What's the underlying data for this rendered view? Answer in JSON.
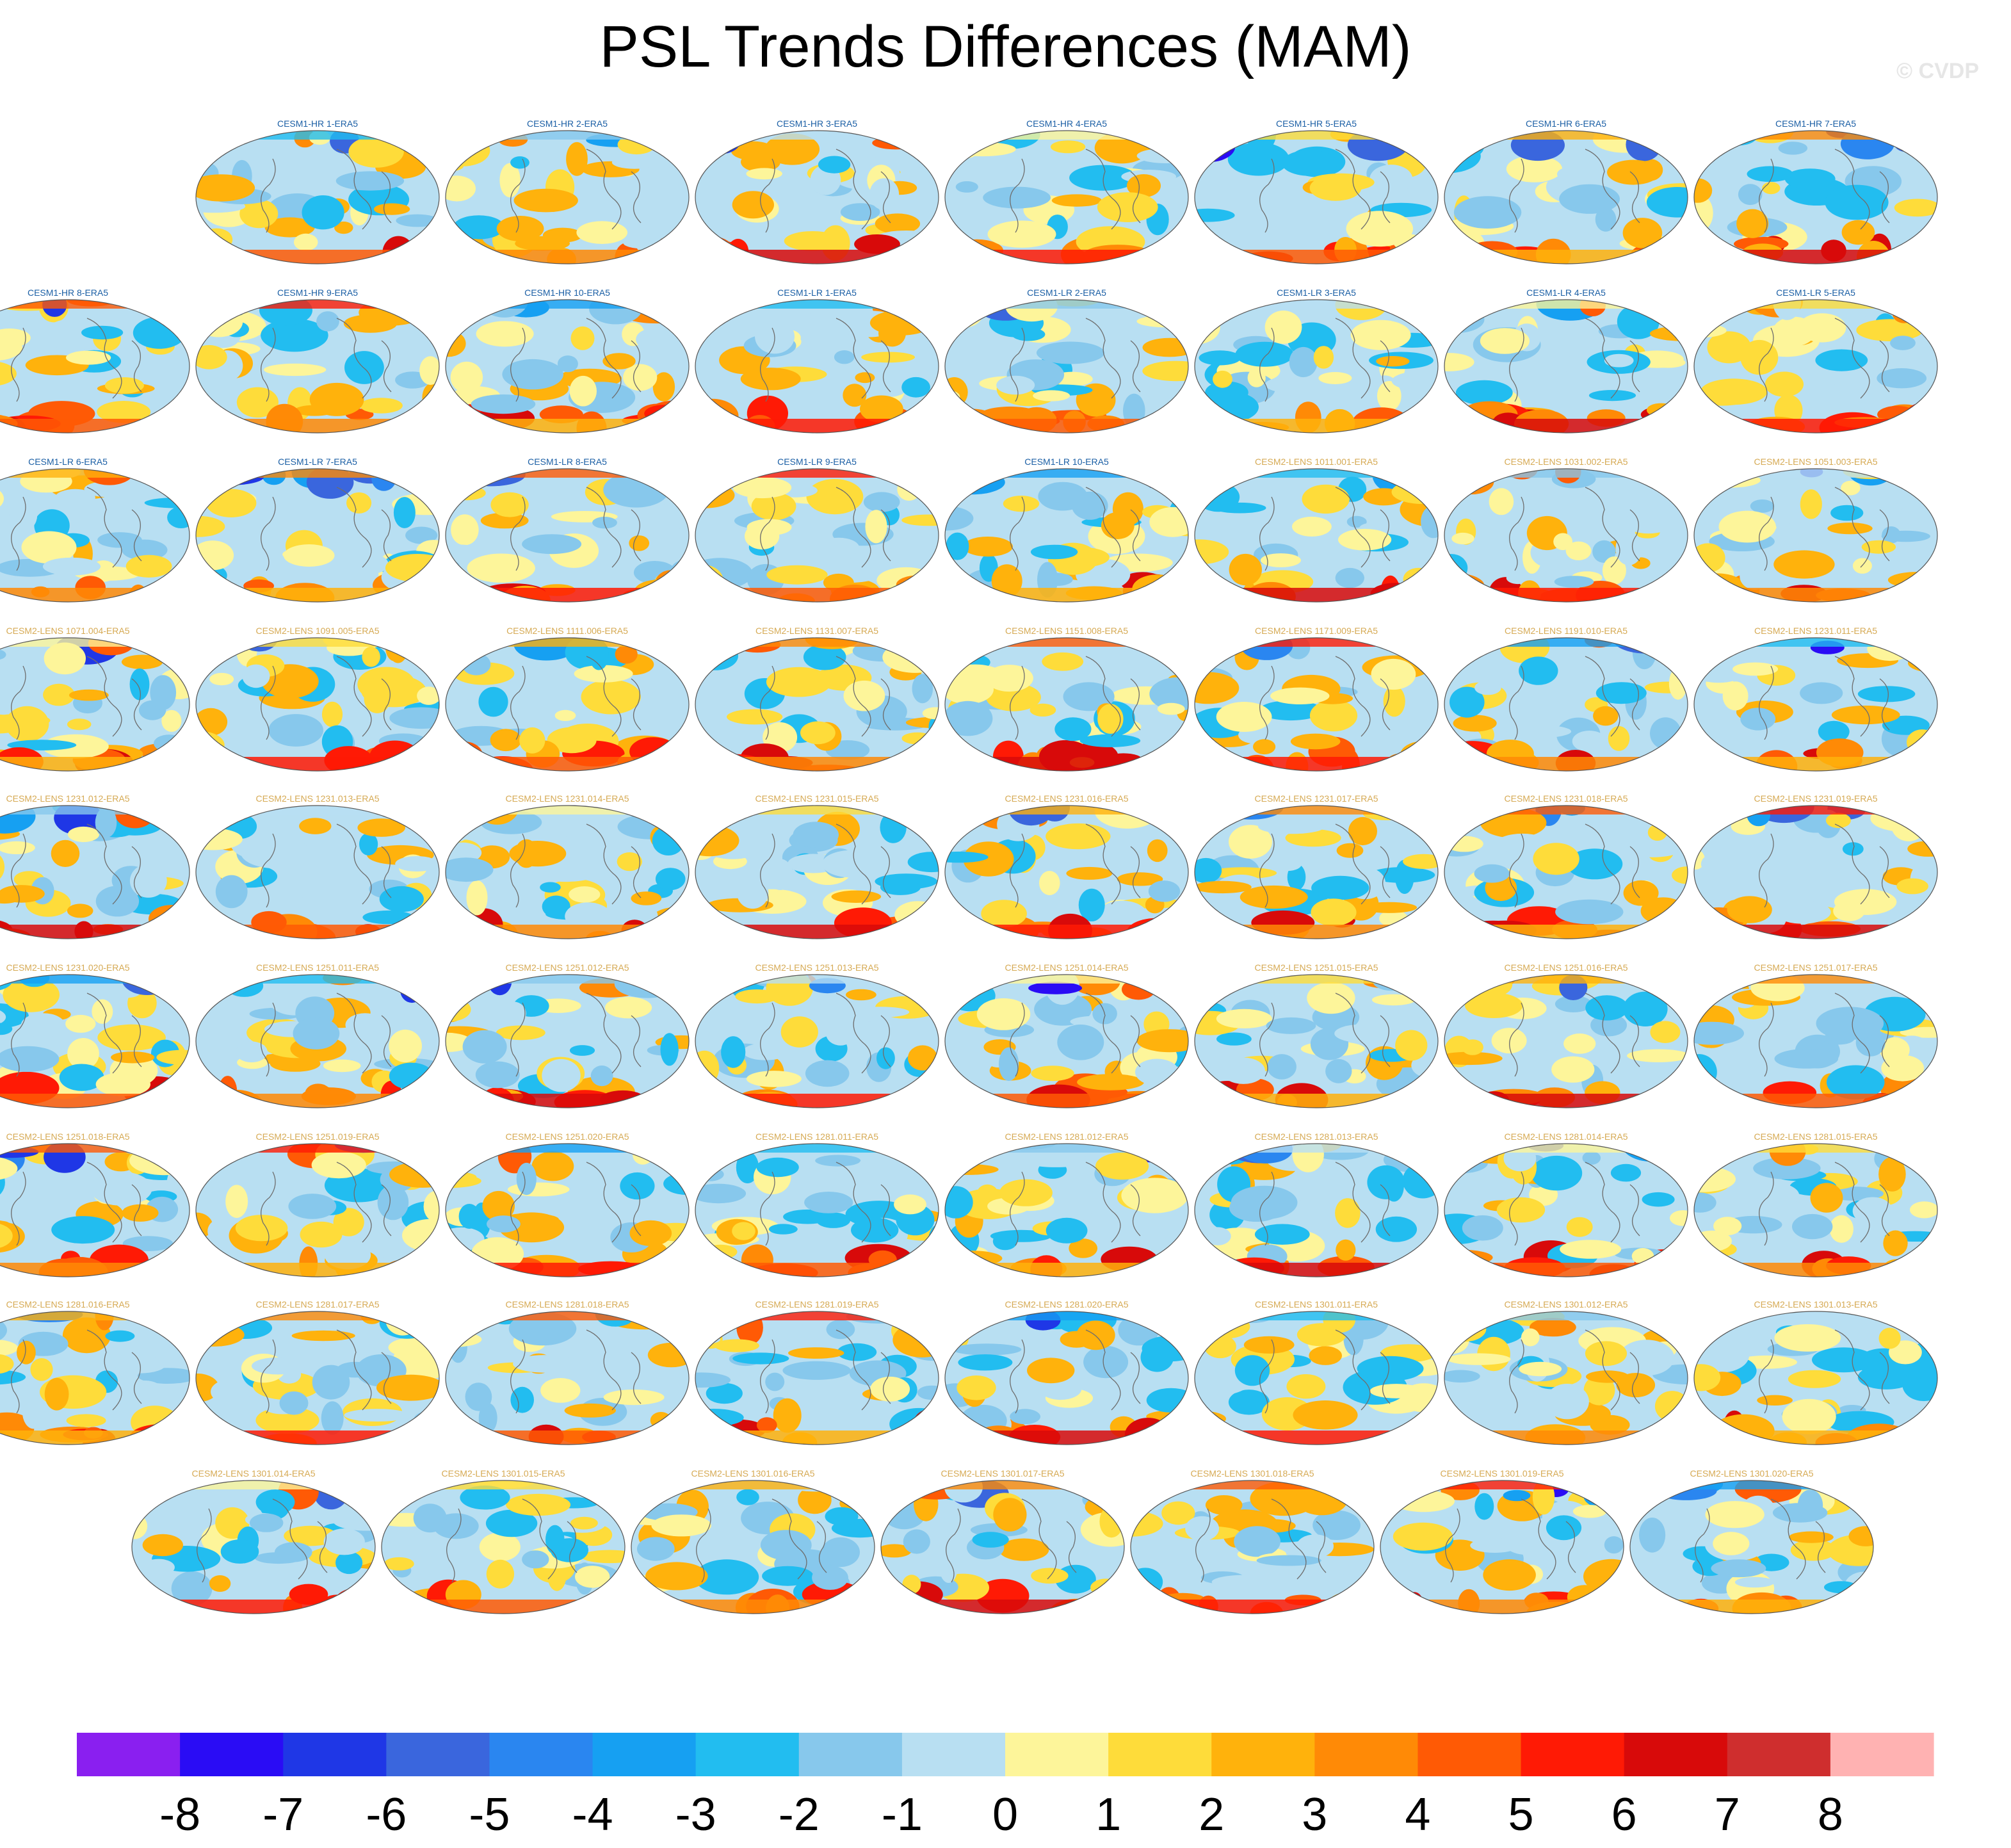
{
  "title": "PSL Trends Differences (MAM)",
  "watermark": "© CVDP",
  "chart_data": {
    "type": "heatmap",
    "title": "PSL Trends Differences (MAM)",
    "variable": "PSL",
    "season": "MAM",
    "panels": [
      "CESM1-HR 1-ERA5",
      "CESM1-HR 2-ERA5",
      "CESM1-HR 3-ERA5",
      "CESM1-HR 4-ERA5",
      "CESM1-HR 5-ERA5",
      "CESM1-HR 6-ERA5",
      "CESM1-HR 7-ERA5",
      "CESM1-HR 8-ERA5",
      "CESM1-HR 9-ERA5",
      "CESM1-HR 10-ERA5",
      "CESM1-LR 1-ERA5",
      "CESM1-LR 2-ERA5",
      "CESM1-LR 3-ERA5",
      "CESM1-LR 4-ERA5",
      "CESM1-LR 5-ERA5",
      "CESM1-LR 6-ERA5",
      "CESM1-LR 7-ERA5",
      "CESM1-LR 8-ERA5",
      "CESM1-LR 9-ERA5",
      "CESM1-LR 10-ERA5",
      "CESM2-LENS 1011.001-ERA5",
      "CESM2-LENS 1031.002-ERA5",
      "CESM2-LENS 1051.003-ERA5",
      "CESM2-LENS 1071.004-ERA5",
      "CESM2-LENS 1091.005-ERA5",
      "CESM2-LENS 1111.006-ERA5",
      "CESM2-LENS 1131.007-ERA5",
      "CESM2-LENS 1151.008-ERA5",
      "CESM2-LENS 1171.009-ERA5",
      "CESM2-LENS 1191.010-ERA5",
      "CESM2-LENS 1231.011-ERA5",
      "CESM2-LENS 1231.012-ERA5",
      "CESM2-LENS 1231.013-ERA5",
      "CESM2-LENS 1231.014-ERA5",
      "CESM2-LENS 1231.015-ERA5",
      "CESM2-LENS 1231.016-ERA5",
      "CESM2-LENS 1231.017-ERA5",
      "CESM2-LENS 1231.018-ERA5",
      "CESM2-LENS 1231.019-ERA5",
      "CESM2-LENS 1231.020-ERA5",
      "CESM2-LENS 1251.011-ERA5",
      "CESM2-LENS 1251.012-ERA5",
      "CESM2-LENS 1251.013-ERA5",
      "CESM2-LENS 1251.014-ERA5",
      "CESM2-LENS 1251.015-ERA5",
      "CESM2-LENS 1251.016-ERA5",
      "CESM2-LENS 1251.017-ERA5",
      "CESM2-LENS 1251.018-ERA5",
      "CESM2-LENS 1251.019-ERA5",
      "CESM2-LENS 1251.020-ERA5",
      "CESM2-LENS 1281.011-ERA5",
      "CESM2-LENS 1281.012-ERA5",
      "CESM2-LENS 1281.013-ERA5",
      "CESM2-LENS 1281.014-ERA5",
      "CESM2-LENS 1281.015-ERA5",
      "CESM2-LENS 1281.016-ERA5",
      "CESM2-LENS 1281.017-ERA5",
      "CESM2-LENS 1281.018-ERA5",
      "CESM2-LENS 1281.019-ERA5",
      "CESM2-LENS 1281.020-ERA5",
      "CESM2-LENS 1301.011-ERA5",
      "CESM2-LENS 1301.012-ERA5",
      "CESM2-LENS 1301.013-ERA5",
      "CESM2-LENS 1301.014-ERA5",
      "CESM2-LENS 1301.015-ERA5",
      "CESM2-LENS 1301.016-ERA5",
      "CESM2-LENS 1301.017-ERA5",
      "CESM2-LENS 1301.018-ERA5",
      "CESM2-LENS 1301.019-ERA5",
      "CESM2-LENS 1301.020-ERA5"
    ],
    "colorbar": {
      "levels": [
        -8,
        -7,
        -6,
        -5,
        -4,
        -3,
        -2,
        -1,
        0,
        1,
        2,
        3,
        4,
        5,
        6,
        7,
        8
      ],
      "colors": [
        "#8a1ff0",
        "#2a0cf5",
        "#1f37e6",
        "#3a66dd",
        "#2a86f0",
        "#16a0f2",
        "#22bdf0",
        "#87c8ec",
        "#b8dff2",
        "#fdf59a",
        "#fedc3a",
        "#ffb20c",
        "#ff8a06",
        "#ff5a05",
        "#ff1a05",
        "#d80a0a",
        "#cf2e2e",
        "#ffb2b2"
      ]
    },
    "label_colors": {
      "CESM1": "#1b5fa5",
      "CESM2": "#d6aa54"
    }
  }
}
